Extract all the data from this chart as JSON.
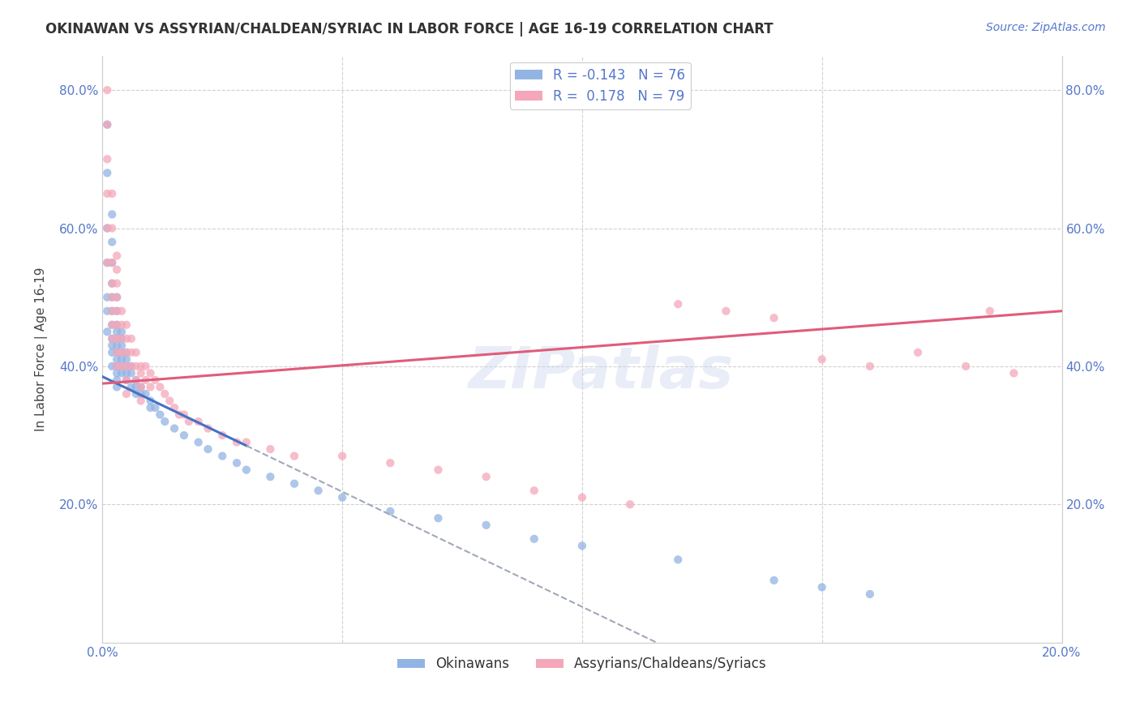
{
  "title": "OKINAWAN VS ASSYRIAN/CHALDEAN/SYRIAC IN LABOR FORCE | AGE 16-19 CORRELATION CHART",
  "source": "Source: ZipAtlas.com",
  "ylabel": "In Labor Force | Age 16-19",
  "xlim": [
    0.0,
    0.2
  ],
  "ylim": [
    0.0,
    0.85
  ],
  "okinawan_color": "#92b4e3",
  "assyrian_color": "#f4a7b9",
  "trendline_okinawan_color": "#4472c4",
  "trendline_assyrian_color": "#e05c7a",
  "trendline_extension_color": "#a0a8b8",
  "background_color": "#ffffff",
  "grid_color": "#cccccc",
  "legend_R_okinawan": "-0.143",
  "legend_N_okinawan": "76",
  "legend_R_assyrian": "0.178",
  "legend_N_assyrian": "79",
  "watermark": "ZIPatlas",
  "okinawan_x": [
    0.001,
    0.001,
    0.001,
    0.001,
    0.001,
    0.001,
    0.001,
    0.002,
    0.002,
    0.002,
    0.002,
    0.002,
    0.002,
    0.002,
    0.002,
    0.002,
    0.002,
    0.002,
    0.003,
    0.003,
    0.003,
    0.003,
    0.003,
    0.003,
    0.003,
    0.003,
    0.003,
    0.003,
    0.003,
    0.003,
    0.004,
    0.004,
    0.004,
    0.004,
    0.004,
    0.004,
    0.004,
    0.005,
    0.005,
    0.005,
    0.005,
    0.005,
    0.006,
    0.006,
    0.006,
    0.007,
    0.007,
    0.007,
    0.008,
    0.008,
    0.009,
    0.01,
    0.01,
    0.011,
    0.012,
    0.013,
    0.015,
    0.017,
    0.02,
    0.022,
    0.025,
    0.028,
    0.03,
    0.035,
    0.04,
    0.045,
    0.05,
    0.06,
    0.07,
    0.08,
    0.09,
    0.1,
    0.12,
    0.14,
    0.15,
    0.16
  ],
  "okinawan_y": [
    0.75,
    0.68,
    0.6,
    0.55,
    0.5,
    0.48,
    0.45,
    0.62,
    0.58,
    0.55,
    0.52,
    0.5,
    0.48,
    0.46,
    0.44,
    0.43,
    0.42,
    0.4,
    0.5,
    0.48,
    0.46,
    0.45,
    0.44,
    0.43,
    0.42,
    0.41,
    0.4,
    0.39,
    0.38,
    0.37,
    0.45,
    0.44,
    0.43,
    0.42,
    0.41,
    0.4,
    0.39,
    0.42,
    0.41,
    0.4,
    0.39,
    0.38,
    0.4,
    0.39,
    0.37,
    0.38,
    0.37,
    0.36,
    0.37,
    0.36,
    0.36,
    0.35,
    0.34,
    0.34,
    0.33,
    0.32,
    0.31,
    0.3,
    0.29,
    0.28,
    0.27,
    0.26,
    0.25,
    0.24,
    0.23,
    0.22,
    0.21,
    0.19,
    0.18,
    0.17,
    0.15,
    0.14,
    0.12,
    0.09,
    0.08,
    0.07
  ],
  "assyrian_x": [
    0.001,
    0.001,
    0.001,
    0.001,
    0.001,
    0.001,
    0.002,
    0.002,
    0.002,
    0.002,
    0.002,
    0.002,
    0.002,
    0.002,
    0.003,
    0.003,
    0.003,
    0.003,
    0.003,
    0.003,
    0.003,
    0.003,
    0.003,
    0.004,
    0.004,
    0.004,
    0.004,
    0.004,
    0.005,
    0.005,
    0.005,
    0.005,
    0.005,
    0.005,
    0.006,
    0.006,
    0.006,
    0.007,
    0.007,
    0.007,
    0.008,
    0.008,
    0.008,
    0.008,
    0.009,
    0.009,
    0.01,
    0.01,
    0.011,
    0.012,
    0.013,
    0.014,
    0.015,
    0.016,
    0.017,
    0.018,
    0.02,
    0.022,
    0.025,
    0.028,
    0.03,
    0.035,
    0.04,
    0.05,
    0.06,
    0.07,
    0.08,
    0.09,
    0.1,
    0.11,
    0.12,
    0.13,
    0.14,
    0.15,
    0.16,
    0.17,
    0.18,
    0.185,
    0.19
  ],
  "assyrian_y": [
    0.8,
    0.75,
    0.7,
    0.65,
    0.6,
    0.55,
    0.65,
    0.6,
    0.55,
    0.52,
    0.5,
    0.48,
    0.46,
    0.44,
    0.56,
    0.54,
    0.52,
    0.5,
    0.48,
    0.46,
    0.44,
    0.42,
    0.4,
    0.48,
    0.46,
    0.44,
    0.42,
    0.4,
    0.46,
    0.44,
    0.42,
    0.4,
    0.38,
    0.36,
    0.44,
    0.42,
    0.4,
    0.42,
    0.4,
    0.38,
    0.4,
    0.39,
    0.37,
    0.35,
    0.4,
    0.38,
    0.39,
    0.37,
    0.38,
    0.37,
    0.36,
    0.35,
    0.34,
    0.33,
    0.33,
    0.32,
    0.32,
    0.31,
    0.3,
    0.29,
    0.29,
    0.28,
    0.27,
    0.27,
    0.26,
    0.25,
    0.24,
    0.22,
    0.21,
    0.2,
    0.49,
    0.48,
    0.47,
    0.41,
    0.4,
    0.42,
    0.4,
    0.48,
    0.39
  ]
}
